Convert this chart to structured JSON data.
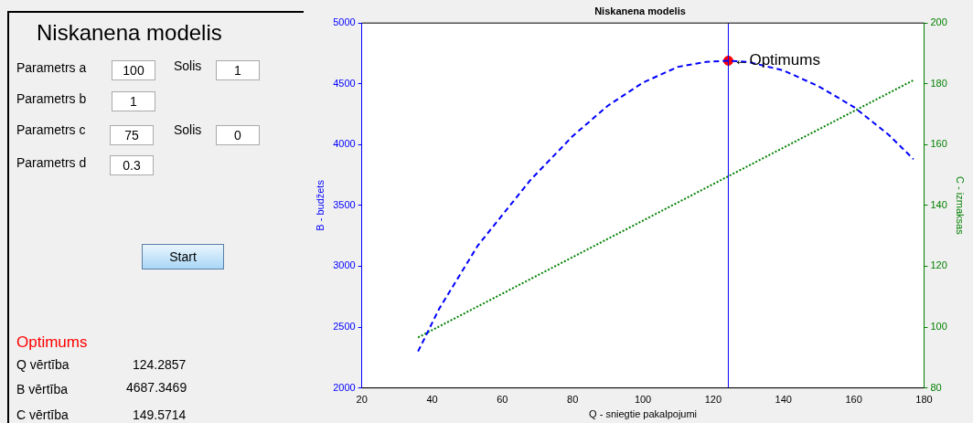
{
  "chart_data": [
    {
      "type": "other",
      "title": "Niskanena modelis",
      "annotations": [
        "Parametrs a",
        "100",
        "Solis",
        "1",
        "Parametrs b",
        "1",
        "Parametrs c",
        "75",
        "Solis",
        "0",
        "Parametrs d",
        "0.3",
        "Start",
        "Optimums",
        "Q vērtība",
        "124.2857",
        "B vērtība",
        "4687.3469",
        "C vērtība",
        "149.5714"
      ]
    },
    {
      "type": "line",
      "title": "Niskanena modelis",
      "xlabel": "Q - sniegtie pakalpojumi",
      "ylabel": "B - budžets",
      "y2label": "C - izmaksas",
      "xlim": [
        20,
        180
      ],
      "xticks": [
        20,
        40,
        60,
        80,
        100,
        120,
        140,
        160,
        180
      ],
      "ylim": [
        2000,
        5000
      ],
      "yticks": [
        2000,
        2500,
        3000,
        3500,
        4000,
        4500,
        5000
      ],
      "y2lim": [
        80,
        200
      ],
      "y2ticks": [
        80,
        100,
        120,
        140,
        160,
        180,
        200
      ],
      "grid": false,
      "legend": false,
      "marker": "none",
      "series": [
        {
          "color": "#0000ff",
          "line_style": "dashed",
          "x": [
            36,
            42,
            53,
            68,
            80,
            90,
            100,
            110,
            118,
            124.2857,
            130,
            140,
            150,
            160,
            170,
            177
          ],
          "values": [
            2300,
            2650,
            3170,
            3710,
            4070,
            4320,
            4510,
            4640,
            4680,
            4690,
            4680,
            4610,
            4480,
            4310,
            4080,
            3880
          ]
        },
        {
          "color": "#008000",
          "line_style": "dotted",
          "axis": "y2",
          "x": [
            36,
            124.2857,
            177
          ],
          "values": [
            96.6,
            149.6,
            181.2
          ]
        },
        {
          "type": "scatter",
          "color": "#ff0000",
          "marker": "circle",
          "x": [
            124.3
          ],
          "values": [
            4690
          ]
        }
      ],
      "ref_lines": [
        {
          "axis": "x",
          "value": 124.3,
          "color": "#0000ff",
          "line_style": "solid"
        }
      ],
      "annotations": [
        {
          "text": "←Optimums",
          "x": 124.3,
          "y": 4690
        }
      ]
    }
  ]
}
